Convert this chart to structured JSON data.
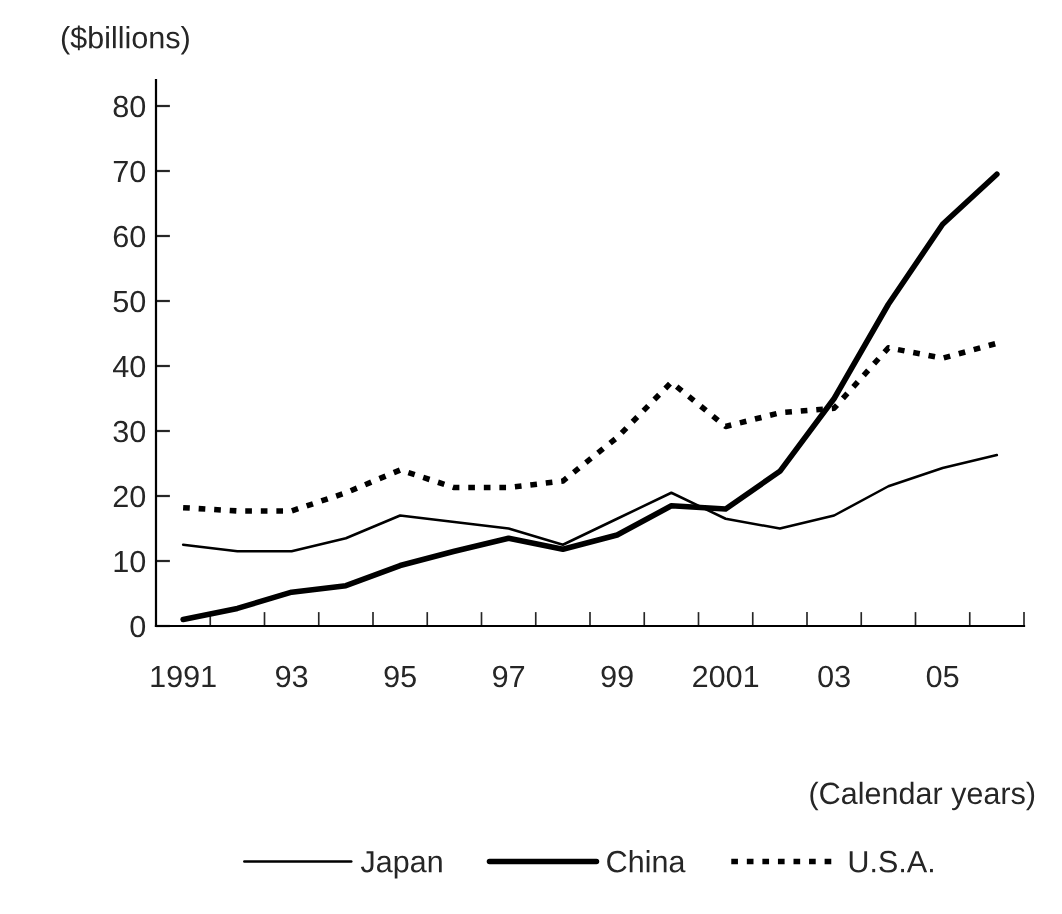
{
  "chart_data": {
    "type": "line",
    "ylabel": "($billions)",
    "xlabel": "(Calendar years)",
    "x": [
      1991,
      1992,
      1993,
      1994,
      1995,
      1996,
      1997,
      1998,
      1999,
      2000,
      2001,
      2002,
      2003,
      2004,
      2005,
      2006
    ],
    "series": [
      {
        "name": "Japan",
        "color": "#000000",
        "line_style": "solid",
        "values": [
          12.5,
          11.5,
          11.5,
          13.5,
          17,
          16,
          15,
          12.5,
          16.5,
          20.5,
          16.5,
          15,
          17,
          21.5,
          24.3,
          26.3
        ]
      },
      {
        "name": "China",
        "color": "#000000",
        "line_style": "solid",
        "values": [
          1,
          2.7,
          5.2,
          6.2,
          9.3,
          11.5,
          13.5,
          11.8,
          14,
          18.5,
          18,
          23.8,
          35,
          49.5,
          61.8,
          69.5
        ]
      },
      {
        "name": "U.S.A.",
        "color": "#000000",
        "line_style": "dotted",
        "values": [
          18.2,
          17.7,
          17.7,
          20.5,
          24,
          21.3,
          21.3,
          22.3,
          29,
          37.5,
          30.7,
          32.8,
          33.5,
          42.8,
          41.2,
          43.5
        ]
      }
    ],
    "xlim": [
      1990.5,
      2006.5
    ],
    "xticks": [
      {
        "value": 1991,
        "label": "1991"
      },
      {
        "value": 1993,
        "label": "93"
      },
      {
        "value": 1995,
        "label": "95"
      },
      {
        "value": 1997,
        "label": "97"
      },
      {
        "value": 1999,
        "label": "99"
      },
      {
        "value": 2001,
        "label": "2001"
      },
      {
        "value": 2003,
        "label": "03"
      },
      {
        "value": 2005,
        "label": "05"
      },
      {
        "value": 1991.5,
        "label": null
      },
      {
        "value": 1992.5,
        "label": null
      },
      {
        "value": 1993.5,
        "label": null
      },
      {
        "value": 1994.5,
        "label": null
      },
      {
        "value": 1995.5,
        "label": null
      },
      {
        "value": 1996.5,
        "label": null
      },
      {
        "value": 1997.5,
        "label": null
      },
      {
        "value": 1998.5,
        "label": null
      },
      {
        "value": 1999.5,
        "label": null
      },
      {
        "value": 2000.5,
        "label": null
      },
      {
        "value": 2001.5,
        "label": null
      },
      {
        "value": 2002.5,
        "label": null
      },
      {
        "value": 2003.5,
        "label": null
      },
      {
        "value": 2004.5,
        "label": null
      },
      {
        "value": 2005.5,
        "label": null
      },
      {
        "value": 2006.5,
        "label": null
      }
    ],
    "ylim": [
      0,
      84
    ],
    "yticks": [
      0,
      10,
      20,
      30,
      40,
      50,
      60,
      70,
      80
    ],
    "grid": false,
    "legend": "bottom",
    "marker": "none"
  }
}
